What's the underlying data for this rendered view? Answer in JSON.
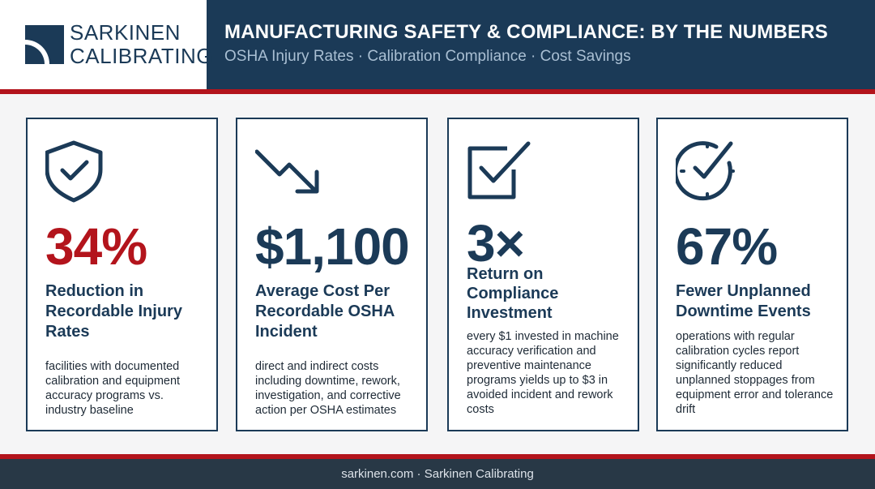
{
  "brand": {
    "line1": "SARKINEN",
    "line2": "CALIBRATING",
    "logo_icon": "quarter-circle-logo-icon"
  },
  "header": {
    "title": "MANUFACTURING SAFETY & COMPLIANCE: BY THE NUMBERS",
    "subtitle": "OSHA Injury Rates · Calibration Compliance · Cost Savings"
  },
  "colors": {
    "navy": "#1b3a57",
    "red": "#b3141c",
    "footer": "#283846"
  },
  "cards": [
    {
      "icon": "shield-check-icon",
      "stat": "34%",
      "label": "Reduction in Recordable Injury Rates",
      "desc": "facilities with documented calibration and equipment accuracy programs vs. industry baseline"
    },
    {
      "icon": "trend-down-arrow-icon",
      "stat": "$1,100",
      "label": "Average Cost Per Recordable OSHA Incident",
      "desc": "direct and indirect costs including downtime, rework, investigation, and corrective action per OSHA estimates"
    },
    {
      "icon": "checkbox-check-icon",
      "stat": "3×",
      "label": "Return on Compliance Investment",
      "desc": "every $1 invested in machine accuracy verification and preventive maintenance programs yields up to $3 in avoided incident and rework costs"
    },
    {
      "icon": "clock-check-icon",
      "stat": "67%",
      "label": "Fewer Unplanned Downtime Events",
      "desc": "operations with regular calibration cycles report significantly reduced unplanned stoppages from equipment error and tolerance drift"
    }
  ],
  "footer": {
    "text": "sarkinen.com · Sarkinen Calibrating"
  }
}
